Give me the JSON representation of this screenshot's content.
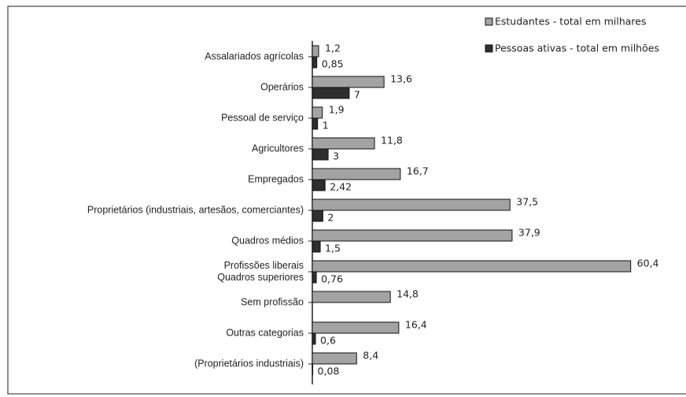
{
  "chart_data": {
    "type": "bar",
    "orientation": "horizontal",
    "categories": [
      "Assalariados agrícolas",
      "Operários",
      "Pessoal de serviço",
      "Agricultores",
      "Empregados",
      "Proprietários (industriais, artesãos, comerciantes)",
      "Quadros médios",
      "Profissões liberais\nQuadros superiores",
      "Sem profissão",
      "Outras categorias",
      "(Proprietários industriais)"
    ],
    "series": [
      {
        "name": "Estudantes - total em milhares",
        "color": "#a3a3a3",
        "values": [
          1.2,
          13.6,
          1.9,
          11.8,
          16.7,
          37.5,
          37.9,
          60.4,
          14.8,
          16.4,
          8.4
        ],
        "value_labels": [
          "1,2",
          "13,6",
          "1,9",
          "11,8",
          "16,7",
          "37,5",
          "37,9",
          "60,4",
          "14,8",
          "16,4",
          "8,4"
        ]
      },
      {
        "name": "Pessoas ativas - total em milhões",
        "color": "#2e2e2e",
        "values": [
          0.85,
          7,
          1,
          3,
          2.42,
          2,
          1.5,
          0.76,
          null,
          0.6,
          0.08
        ],
        "value_labels": [
          "0,85",
          "7",
          "1",
          "3",
          "2,42",
          "2",
          "1,5",
          "0,76",
          null,
          "0,6",
          "0,08"
        ]
      }
    ],
    "legend": "top-right"
  }
}
